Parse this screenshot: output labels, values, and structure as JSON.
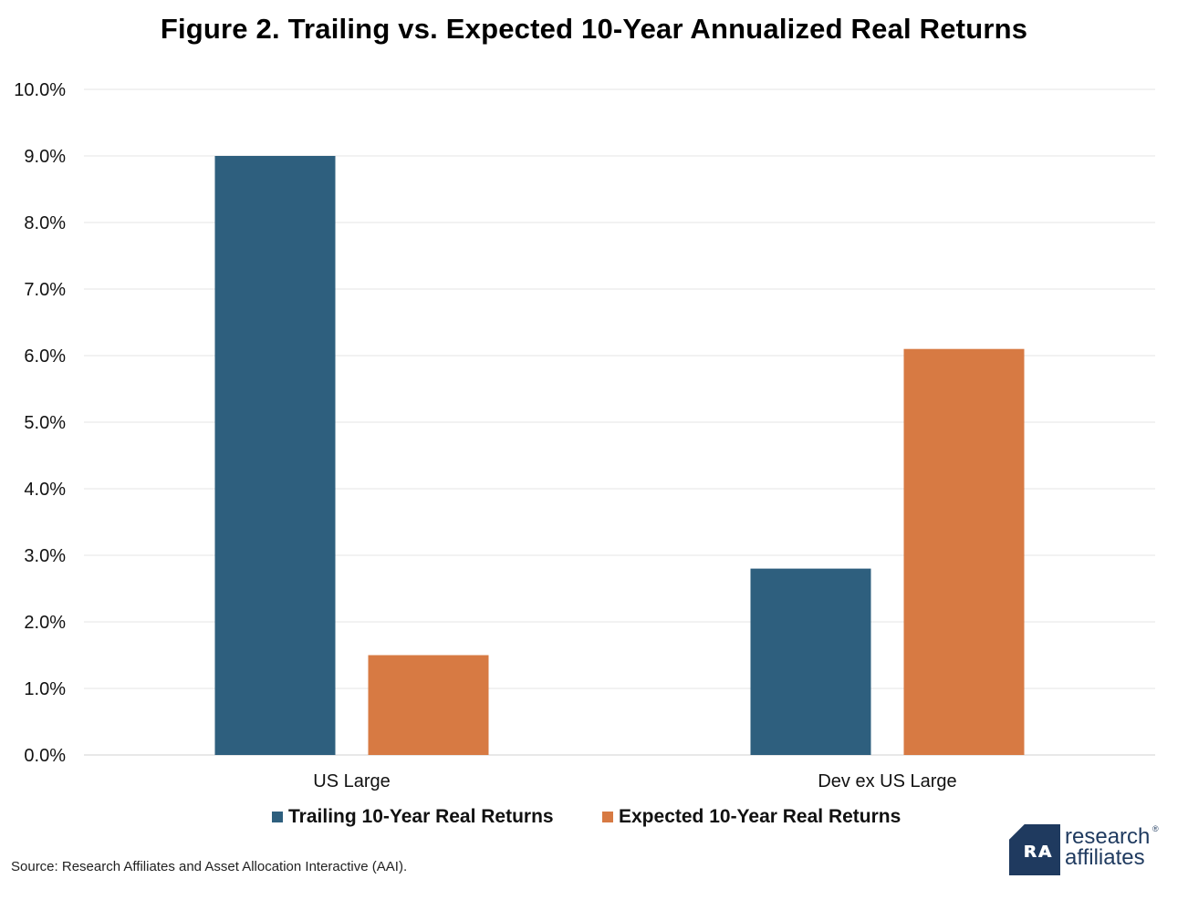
{
  "title": "Figure 2. Trailing vs. Expected 10-Year Annualized Real Returns",
  "chart_data": {
    "type": "bar",
    "categories": [
      "US Large",
      "Dev ex US Large"
    ],
    "series": [
      {
        "name": "Trailing 10-Year Real Returns",
        "values": [
          9.0,
          2.8
        ],
        "color": "#2e5f7e"
      },
      {
        "name": "Expected 10-Year Real Returns",
        "values": [
          1.5,
          6.1
        ],
        "color": "#d77a43"
      }
    ],
    "ylim": [
      0,
      10
    ],
    "yticks": [
      "0.0%",
      "1.0%",
      "2.0%",
      "3.0%",
      "4.0%",
      "5.0%",
      "6.0%",
      "7.0%",
      "8.0%",
      "9.0%",
      "10.0%"
    ],
    "grid": true,
    "legend_position": "bottom"
  },
  "source": "Source: Research Affiliates and Asset Allocation Interactive (AAI).",
  "logo": {
    "line1": "research",
    "line2": "affiliates",
    "mark": "ra-logo-icon",
    "registered": "®"
  }
}
